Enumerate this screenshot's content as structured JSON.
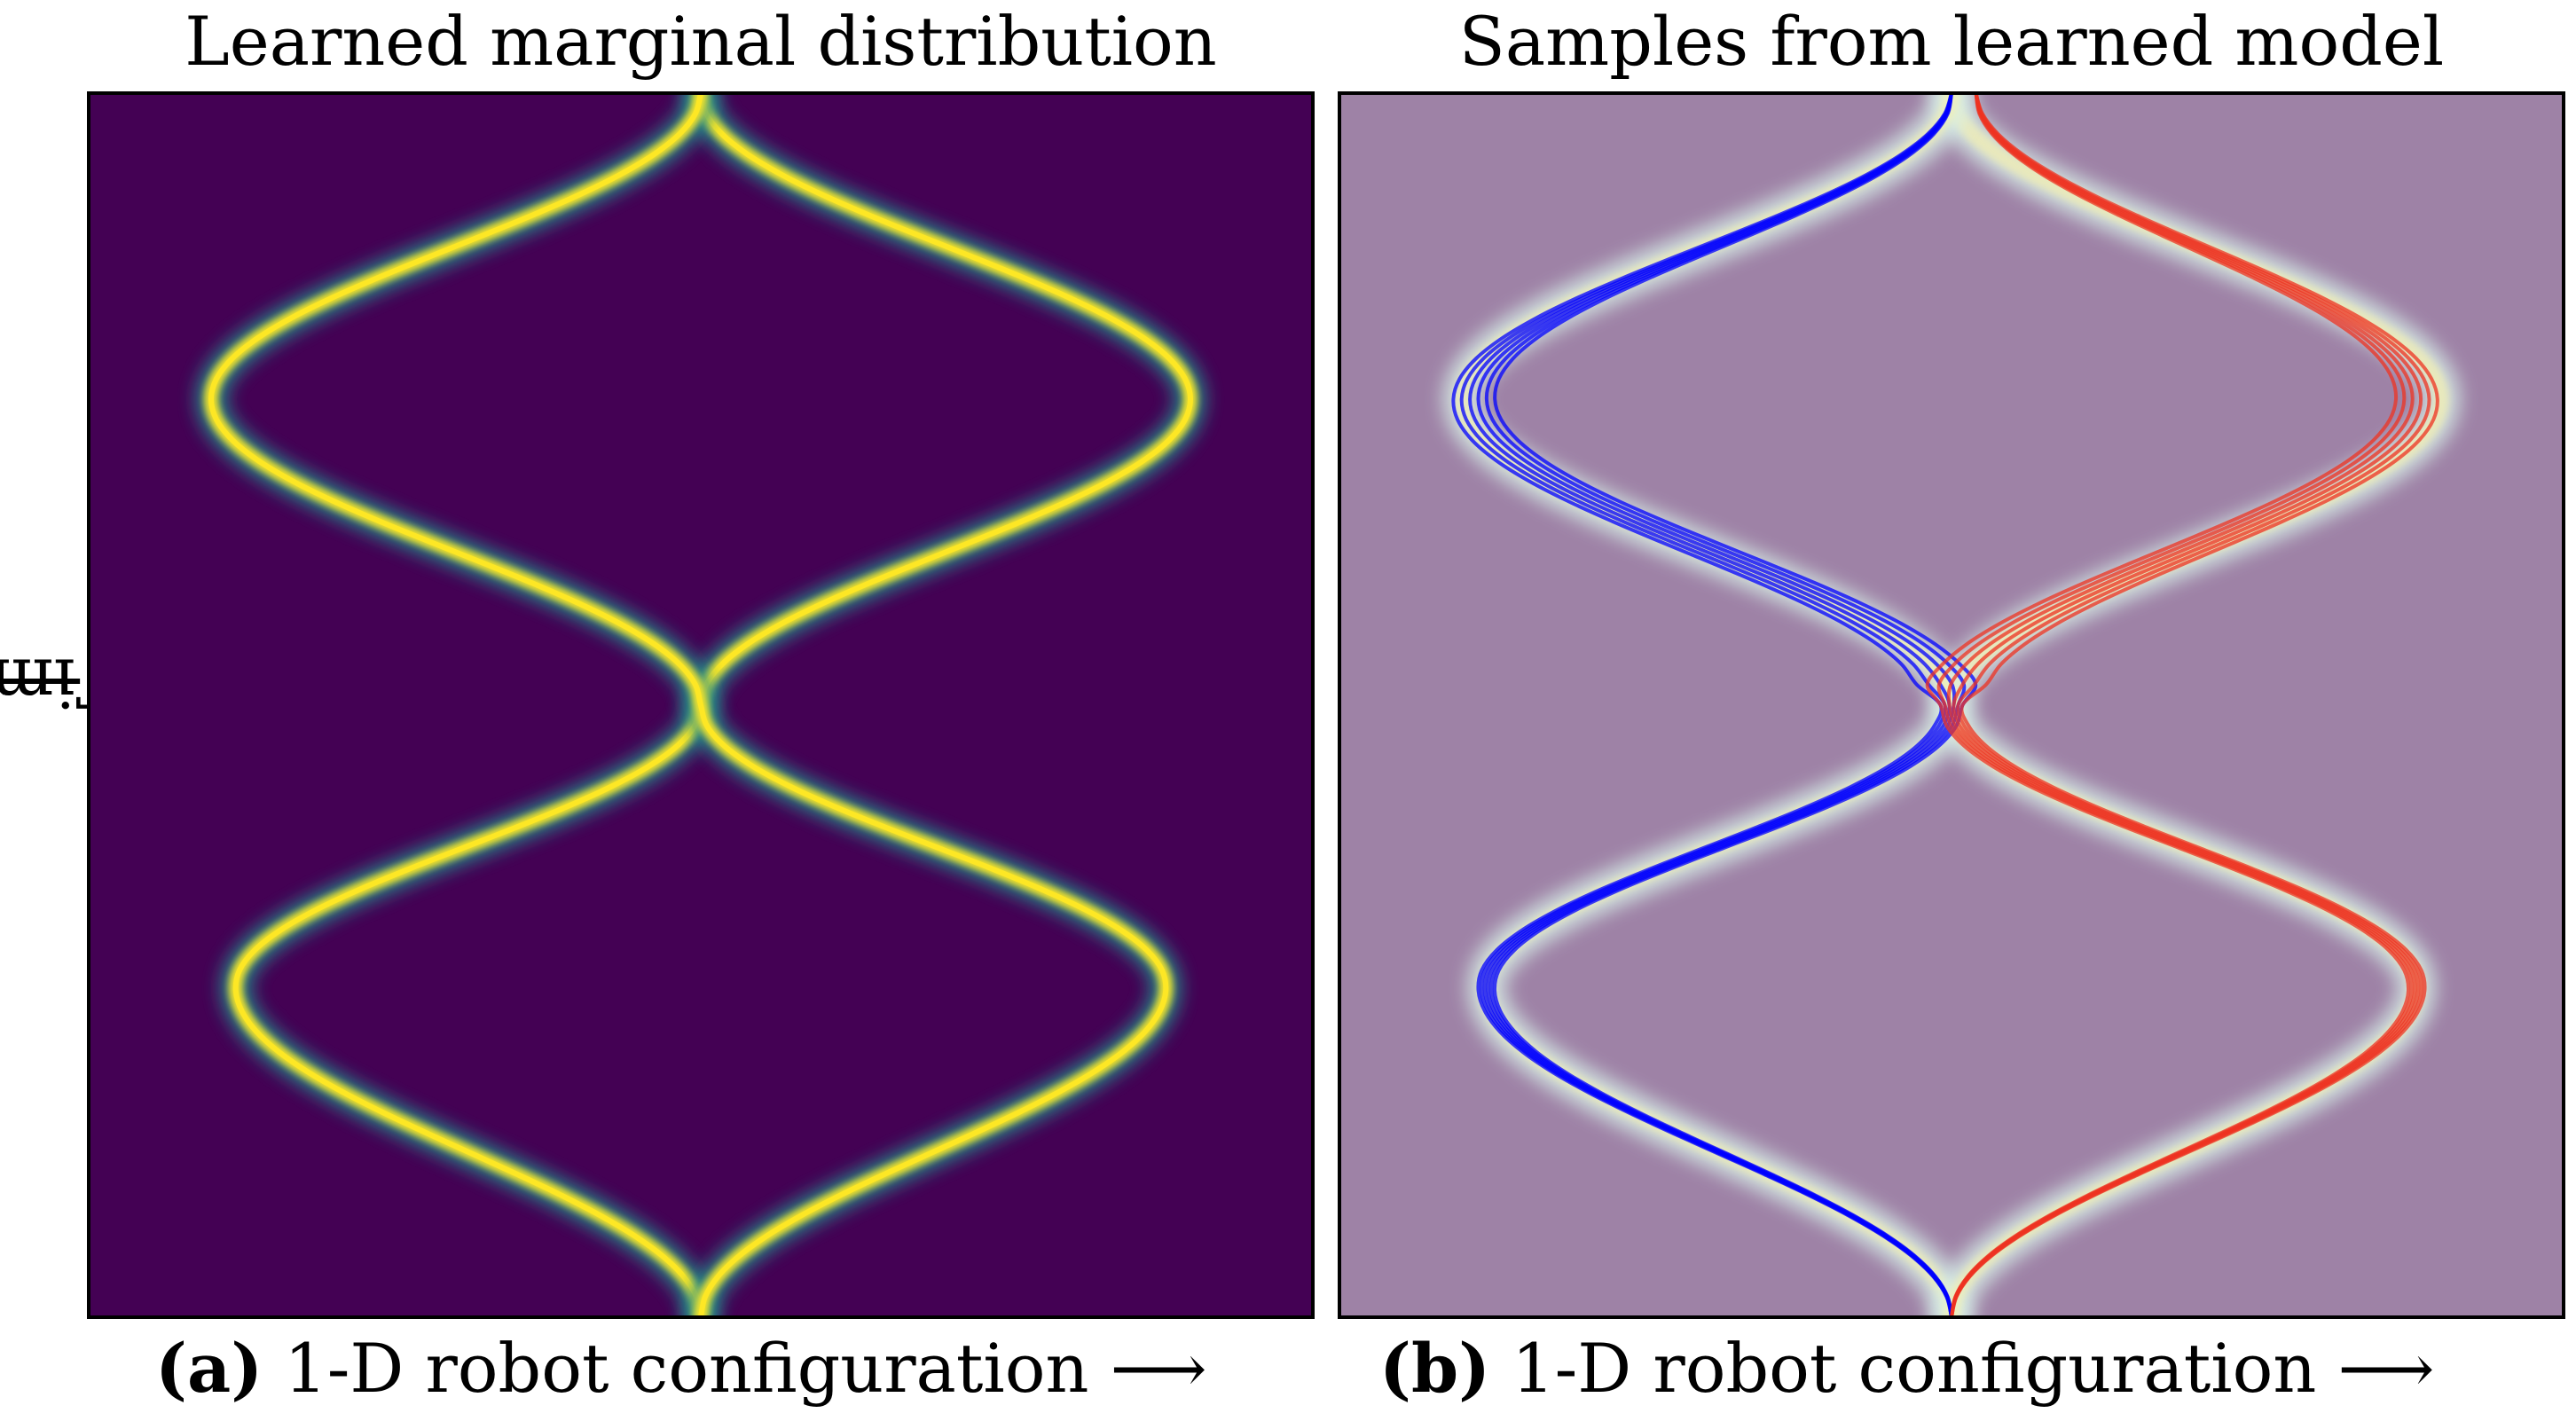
{
  "figure": {
    "panel_a_title": "Learned marginal distribution",
    "panel_b_title": "Samples from learned model",
    "panel_a_label": "(a)",
    "panel_b_label": "(b)",
    "xlabel": "1-D robot configuration",
    "xlabel_arrow": "⟶",
    "ylabel": "Time",
    "ylabel_arrow": "⟶"
  },
  "colors": {
    "viridis_bg": "#440154",
    "viridis_mid": "#21918c",
    "viridis_high": "#fde725",
    "panel_b_bg": "#9e82a6",
    "blue_samples": "#0000ff",
    "red_samples": "#ee3322"
  },
  "chart_data": [
    {
      "type": "heatmap",
      "title": "Learned marginal distribution",
      "xlabel": "1-D robot configuration",
      "ylabel": "Time",
      "colormap": "viridis",
      "grid": false,
      "branches": [
        {
          "name": "",
          "time": [
            0.0,
            0.27,
            0.5,
            0.75,
            1.0
          ],
          "x": [
            0.0,
            -0.38,
            0.0,
            0.4,
            0.0
          ]
        },
        {
          "name": "",
          "time": [
            0.0,
            0.27,
            0.5,
            0.75,
            1.0
          ],
          "x": [
            0.0,
            0.38,
            0.0,
            -0.4,
            0.0
          ]
        }
      ]
    },
    {
      "type": "line",
      "title": "Samples from learned model",
      "xlabel": "1-D robot configuration",
      "ylabel": "Time",
      "grid": false,
      "background": "marginal density overlay",
      "series": [
        {
          "name": "",
          "color": "#0000ff",
          "count": 6,
          "time": [
            0.0,
            0.27,
            0.5,
            0.75,
            1.0
          ],
          "x": [
            0.0,
            -0.38,
            0.0,
            -0.39,
            0.0
          ]
        },
        {
          "name": "",
          "color": "#ee3322",
          "count": 6,
          "time": [
            0.0,
            0.27,
            0.5,
            0.75,
            1.0
          ],
          "x": [
            0.0,
            0.38,
            0.0,
            0.38,
            0.02
          ]
        }
      ]
    }
  ]
}
